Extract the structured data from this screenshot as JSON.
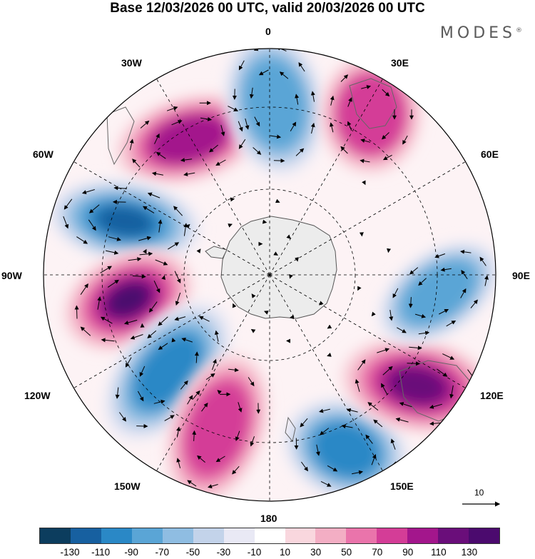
{
  "title": "Base 12/03/2026 00 UTC, valid 20/03/2026 00 UTC",
  "brand": {
    "name": "MODES",
    "mark": "®"
  },
  "map": {
    "projection": "south polar stereographic",
    "longitude_labels": {
      "lon_0": "0",
      "lon_30e": "30E",
      "lon_60e": "60E",
      "lon_90e": "90E",
      "lon_120e": "120E",
      "lon_150e": "150E",
      "lon_180": "180",
      "lon_150w": "150W",
      "lon_120w": "120W",
      "lon_90w": "90W",
      "lon_60w": "60W",
      "lon_30w": "30W"
    },
    "anomaly_centers": [
      {
        "name": "positive-30w",
        "sign": "positive",
        "peak": 95
      },
      {
        "name": "negative-0",
        "sign": "negative",
        "peak": -85
      },
      {
        "name": "positive-30e",
        "sign": "positive",
        "peak": 70
      },
      {
        "name": "negative-60w",
        "sign": "negative",
        "peak": -125
      },
      {
        "name": "positive-90w",
        "sign": "positive",
        "peak": 130
      },
      {
        "name": "negative-120w",
        "sign": "negative",
        "peak": -95
      },
      {
        "name": "positive-150w",
        "sign": "positive",
        "peak": 80
      },
      {
        "name": "negative-150e",
        "sign": "negative",
        "peak": -95
      },
      {
        "name": "positive-120e",
        "sign": "positive",
        "peak": 125
      },
      {
        "name": "negative-90e",
        "sign": "negative",
        "peak": -85
      }
    ],
    "reference_vector": {
      "label": "10"
    }
  },
  "colorbar": {
    "labels": [
      "-130",
      "-110",
      "-90",
      "-70",
      "-50",
      "-30",
      "-10",
      "10",
      "30",
      "50",
      "70",
      "90",
      "110",
      "130"
    ],
    "colors": [
      "#0c3d5e",
      "#1760a0",
      "#2a88c6",
      "#5aa5d6",
      "#8fbde2",
      "#c3d3ea",
      "#e9e9f5",
      "#ffffff",
      "#f9d7de",
      "#f3aec4",
      "#ea74ab",
      "#d43d97",
      "#a3168c",
      "#6a0e7a",
      "#4b0a6e"
    ]
  }
}
